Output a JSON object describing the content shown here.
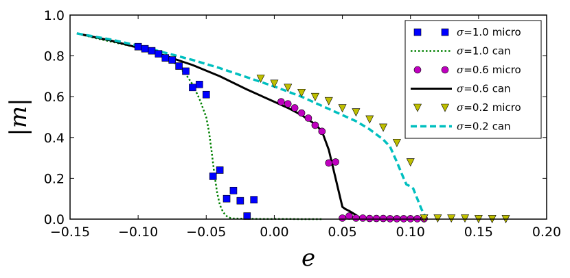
{
  "chart_data": {
    "type": "scatter",
    "title": "",
    "xlabel": "e",
    "ylabel": "|m|",
    "xlim": [
      -0.15,
      0.2
    ],
    "ylim": [
      0.0,
      1.0
    ],
    "xticks": [
      -0.15,
      -0.1,
      -0.05,
      0.0,
      0.05,
      0.1,
      0.15,
      0.2
    ],
    "xtick_labels": [
      "−0.15",
      "−0.10",
      "−0.05",
      "0.00",
      "0.05",
      "0.10",
      "0.15",
      "0.20"
    ],
    "yticks": [
      0.0,
      0.2,
      0.4,
      0.6,
      0.8,
      1.0
    ],
    "ytick_labels": [
      "0.0",
      "0.2",
      "0.4",
      "0.6",
      "0.8",
      "1.0"
    ],
    "grid": false,
    "legend_position": "top-right",
    "series": [
      {
        "name": "σ=1.0 micro",
        "sigma": "σ",
        "eq": "=1.0",
        "kind": "micro",
        "style": "marker",
        "marker": "square",
        "color": "#0000ff",
        "x": [
          -0.1,
          -0.095,
          -0.09,
          -0.085,
          -0.08,
          -0.075,
          -0.07,
          -0.065,
          -0.06,
          -0.055,
          -0.05,
          -0.045,
          -0.04,
          -0.035,
          -0.03,
          -0.025,
          -0.02,
          -0.015
        ],
        "y": [
          0.845,
          0.835,
          0.825,
          0.81,
          0.79,
          0.78,
          0.75,
          0.725,
          0.645,
          0.66,
          0.61,
          0.21,
          0.24,
          0.1,
          0.14,
          0.09,
          0.015,
          0.095
        ]
      },
      {
        "name": "σ=1.0 can",
        "sigma": "σ",
        "eq": "=1.0",
        "kind": "can",
        "style": "dotted",
        "color": "#008000",
        "x": [
          -0.145,
          -0.13,
          -0.12,
          -0.11,
          -0.1,
          -0.09,
          -0.08,
          -0.075,
          -0.07,
          -0.065,
          -0.06,
          -0.055,
          -0.05,
          -0.048,
          -0.046,
          -0.044,
          -0.042,
          -0.04,
          -0.038,
          -0.036,
          -0.034,
          -0.032,
          -0.03,
          -0.02,
          -0.01,
          0.0,
          0.01,
          0.02,
          0.035
        ],
        "y": [
          0.91,
          0.885,
          0.87,
          0.855,
          0.84,
          0.82,
          0.795,
          0.775,
          0.745,
          0.71,
          0.66,
          0.59,
          0.5,
          0.43,
          0.33,
          0.22,
          0.13,
          0.07,
          0.04,
          0.02,
          0.01,
          0.005,
          0.003,
          0.002,
          0.001,
          0.001,
          0.001,
          0.0,
          0.0
        ]
      },
      {
        "name": "σ=0.6 micro",
        "sigma": "σ",
        "eq": "=0.6",
        "kind": "micro",
        "style": "marker",
        "marker": "circle",
        "color": "#bf00bf",
        "x": [
          0.005,
          0.01,
          0.015,
          0.02,
          0.025,
          0.03,
          0.035,
          0.04,
          0.045,
          0.05,
          0.055,
          0.06,
          0.065,
          0.07,
          0.075,
          0.08,
          0.085,
          0.09,
          0.095,
          0.1,
          0.105,
          0.11
        ],
        "y": [
          0.575,
          0.565,
          0.545,
          0.52,
          0.495,
          0.46,
          0.43,
          0.275,
          0.28,
          0.005,
          0.015,
          0.005,
          0.005,
          0.003,
          0.003,
          0.003,
          0.002,
          0.002,
          0.002,
          0.002,
          0.002,
          0.002
        ]
      },
      {
        "name": "σ=0.6 can",
        "sigma": "σ",
        "eq": "=0.6",
        "kind": "can",
        "style": "solid",
        "color": "#000000",
        "x": [
          -0.145,
          -0.12,
          -0.1,
          -0.08,
          -0.06,
          -0.04,
          -0.02,
          0.0,
          0.01,
          0.02,
          0.03,
          0.035,
          0.04,
          0.045,
          0.05,
          0.052,
          0.055,
          0.06,
          0.062,
          0.065,
          0.07,
          0.08
        ],
        "y": [
          0.91,
          0.875,
          0.84,
          0.8,
          0.755,
          0.7,
          0.635,
          0.575,
          0.545,
          0.51,
          0.465,
          0.43,
          0.34,
          0.2,
          0.06,
          0.05,
          0.04,
          0.02,
          0.01,
          0.005,
          0.003,
          0.002
        ]
      },
      {
        "name": "σ=0.2 micro",
        "sigma": "σ",
        "eq": "=0.2",
        "kind": "micro",
        "style": "marker",
        "marker": "triangle-down",
        "color": "#bfbf00",
        "x": [
          -0.01,
          0.0,
          0.01,
          0.02,
          0.03,
          0.04,
          0.05,
          0.06,
          0.07,
          0.08,
          0.09,
          0.1,
          0.11,
          0.12,
          0.13,
          0.14,
          0.15,
          0.16,
          0.17
        ],
        "y": [
          0.69,
          0.665,
          0.645,
          0.62,
          0.6,
          0.58,
          0.545,
          0.525,
          0.49,
          0.45,
          0.375,
          0.28,
          0.005,
          0.005,
          0.005,
          0.005,
          0.002,
          0.002,
          0.002
        ]
      },
      {
        "name": "σ=0.2 can",
        "sigma": "σ",
        "eq": "=0.2",
        "kind": "can",
        "style": "dashed",
        "color": "#00bfbf",
        "x": [
          -0.145,
          -0.12,
          -0.1,
          -0.08,
          -0.06,
          -0.04,
          -0.02,
          0.0,
          0.02,
          0.04,
          0.06,
          0.07,
          0.08,
          0.085,
          0.09,
          0.095,
          0.097,
          0.1,
          0.102,
          0.105,
          0.108,
          0.111,
          0.112
        ],
        "y": [
          0.91,
          0.88,
          0.85,
          0.815,
          0.78,
          0.74,
          0.695,
          0.65,
          0.6,
          0.54,
          0.48,
          0.44,
          0.39,
          0.355,
          0.28,
          0.2,
          0.17,
          0.16,
          0.15,
          0.1,
          0.05,
          0.01,
          0.005
        ]
      }
    ]
  }
}
